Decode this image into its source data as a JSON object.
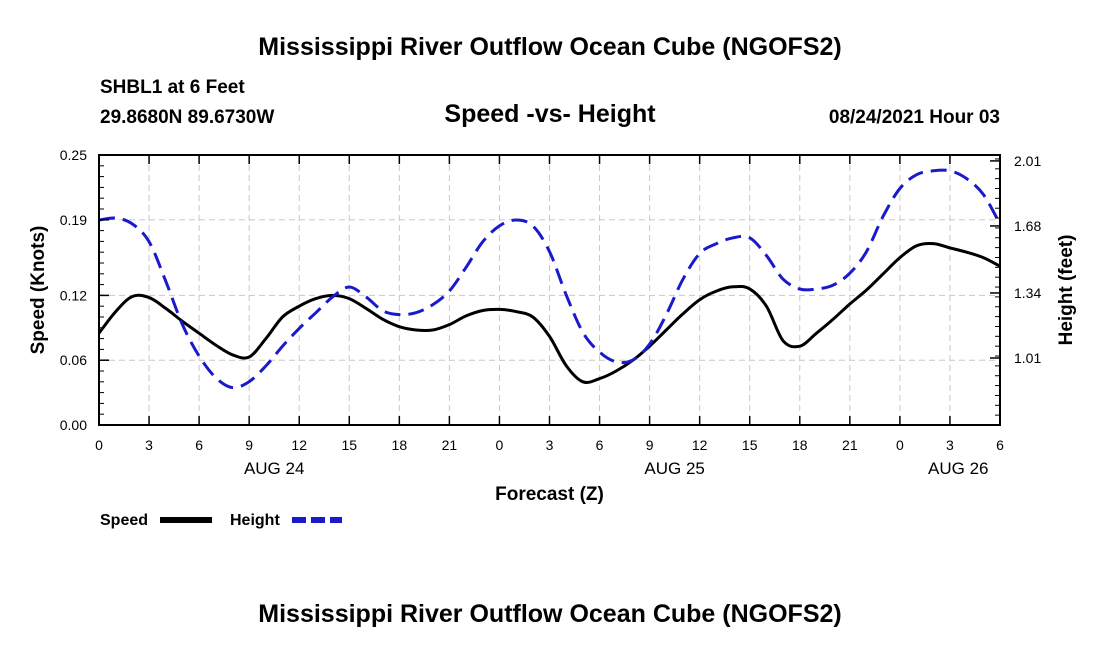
{
  "header": {
    "title_top": "Mississippi River Outflow Ocean Cube (NGOFS2)",
    "station": "SHBL1 at 6 Feet",
    "coords": "29.8680N  89.6730W",
    "subtitle": "Speed -vs- Height",
    "datetime": "08/24/2021 Hour 03",
    "title_bottom": "Mississippi River Outflow Ocean Cube (NGOFS2)"
  },
  "colors": {
    "speed": "#000000",
    "height": "#1a1acc",
    "grid": "#c8c8c8",
    "axis": "#000000"
  },
  "chart_data": {
    "type": "line",
    "title": "Speed -vs- Height",
    "xlabel": "Forecast (Z)",
    "ylabel": "Speed (Knots)",
    "y2label": "Height (feet)",
    "xlim": [
      0,
      54
    ],
    "ylim": [
      0,
      0.25
    ],
    "y2lim": [
      0.67,
      2.04
    ],
    "x_ticks": [
      0,
      3,
      6,
      9,
      12,
      15,
      18,
      21,
      24,
      27,
      30,
      33,
      36,
      39,
      42,
      45,
      48,
      51,
      54
    ],
    "x_tick_labels": [
      "0",
      "3",
      "6",
      "9",
      "12",
      "15",
      "18",
      "21",
      "0",
      "3",
      "6",
      "9",
      "12",
      "15",
      "18",
      "21",
      "0",
      "3",
      "6"
    ],
    "date_labels": [
      {
        "x": 10.5,
        "label": "AUG 24"
      },
      {
        "x": 34.5,
        "label": "AUG 25"
      },
      {
        "x": 51.5,
        "label": "AUG 26"
      }
    ],
    "y_ticks": [
      0.0,
      0.06,
      0.12,
      0.19,
      0.25
    ],
    "y_tick_labels": [
      "0.00",
      "0.06",
      "0.12",
      "0.19",
      "0.25"
    ],
    "y2_ticks": [
      1.01,
      1.34,
      1.68,
      2.01
    ],
    "y2_tick_labels": [
      "1.01",
      "1.34",
      "1.68",
      "2.01"
    ],
    "grid": true,
    "legend_placement": "bottom-left",
    "series": [
      {
        "name": "Speed",
        "axis": "left",
        "style": "solid",
        "x": [
          0,
          1,
          2,
          3,
          4,
          5,
          6,
          7,
          8,
          9,
          10,
          11,
          12,
          13,
          14,
          15,
          16,
          17,
          18,
          19,
          20,
          21,
          22,
          23,
          24,
          25,
          26,
          27,
          28,
          29,
          30,
          31,
          32,
          33,
          34,
          35,
          36,
          37,
          38,
          39,
          40,
          41,
          42,
          43,
          44,
          45,
          46,
          47,
          48,
          49,
          50,
          51,
          52,
          53,
          54
        ],
        "values": [
          0.085,
          0.105,
          0.119,
          0.118,
          0.108,
          0.096,
          0.085,
          0.074,
          0.065,
          0.063,
          0.08,
          0.1,
          0.11,
          0.117,
          0.12,
          0.117,
          0.108,
          0.098,
          0.091,
          0.088,
          0.088,
          0.093,
          0.101,
          0.106,
          0.107,
          0.105,
          0.1,
          0.082,
          0.055,
          0.04,
          0.043,
          0.05,
          0.06,
          0.073,
          0.088,
          0.103,
          0.116,
          0.124,
          0.128,
          0.126,
          0.11,
          0.078,
          0.073,
          0.085,
          0.098,
          0.112,
          0.125,
          0.14,
          0.155,
          0.166,
          0.168,
          0.164,
          0.16,
          0.155,
          0.147
        ]
      },
      {
        "name": "Height",
        "axis": "right",
        "style": "dashed",
        "x": [
          0,
          1,
          2,
          3,
          4,
          5,
          6,
          7,
          8,
          9,
          10,
          11,
          12,
          13,
          14,
          15,
          16,
          17,
          18,
          19,
          20,
          21,
          22,
          23,
          24,
          25,
          26,
          27,
          28,
          29,
          30,
          31,
          32,
          33,
          34,
          35,
          36,
          37,
          38,
          39,
          40,
          41,
          42,
          43,
          44,
          45,
          46,
          47,
          48,
          49,
          50,
          51,
          52,
          53,
          54
        ],
        "values": [
          1.71,
          1.72,
          1.69,
          1.6,
          1.4,
          1.18,
          1.02,
          0.91,
          0.86,
          0.89,
          0.97,
          1.07,
          1.16,
          1.24,
          1.32,
          1.37,
          1.32,
          1.25,
          1.23,
          1.24,
          1.28,
          1.35,
          1.47,
          1.6,
          1.68,
          1.71,
          1.68,
          1.55,
          1.33,
          1.14,
          1.04,
          0.99,
          1.0,
          1.08,
          1.23,
          1.41,
          1.54,
          1.59,
          1.62,
          1.62,
          1.53,
          1.41,
          1.36,
          1.36,
          1.38,
          1.44,
          1.55,
          1.73,
          1.87,
          1.94,
          1.96,
          1.96,
          1.92,
          1.84,
          1.69
        ]
      }
    ]
  }
}
